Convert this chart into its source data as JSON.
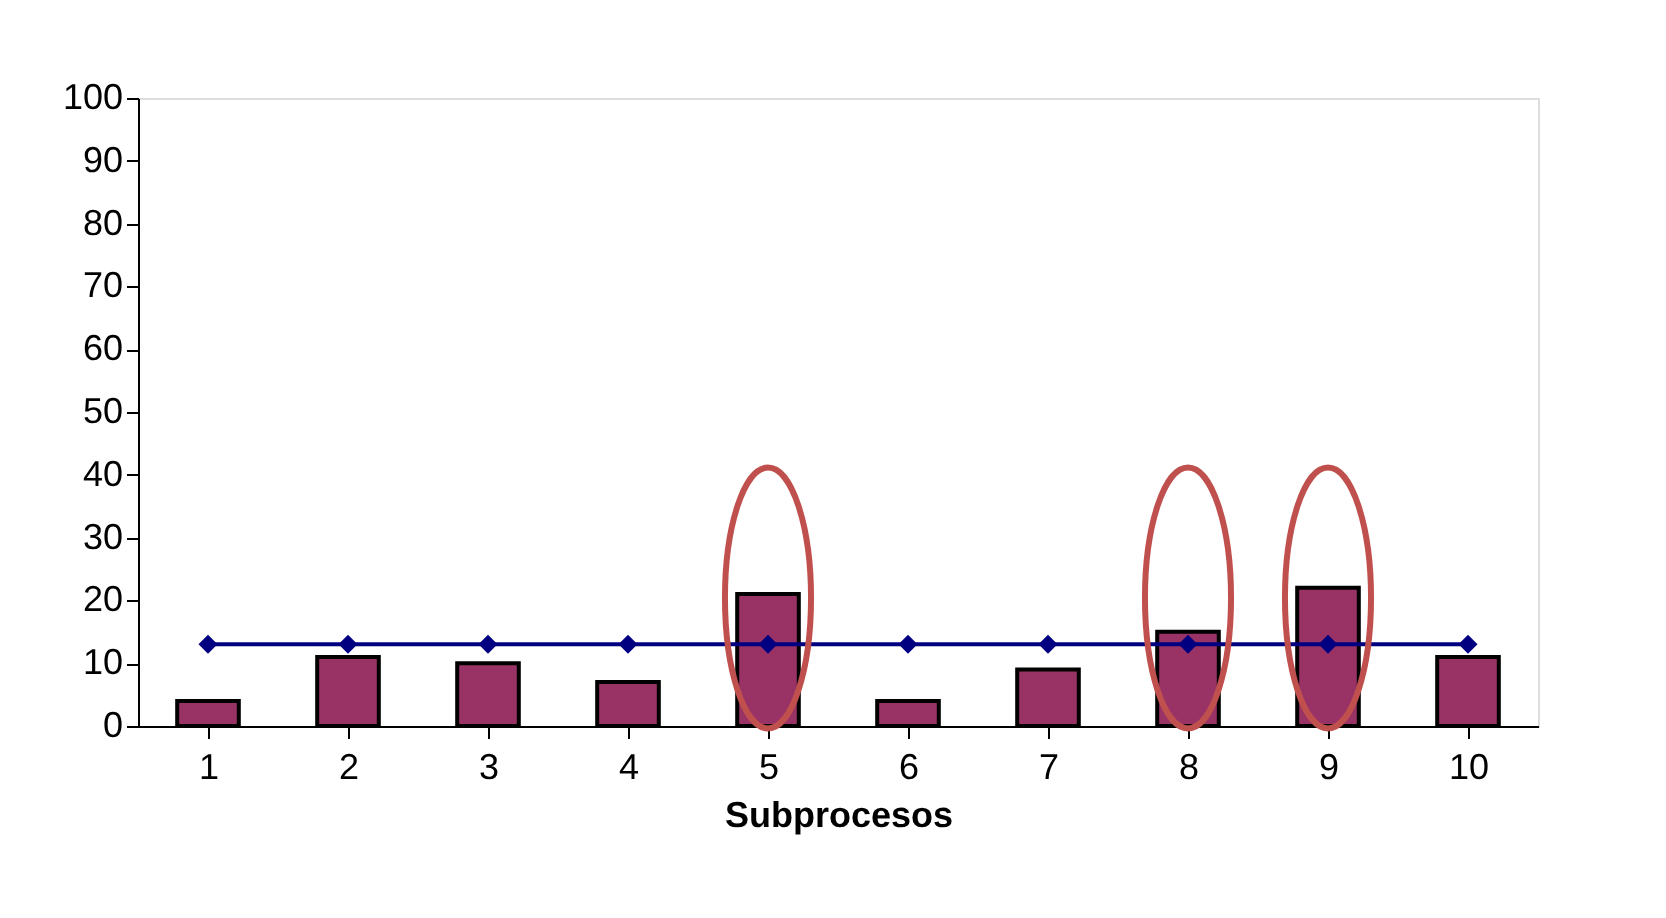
{
  "chart_data": {
    "type": "bar",
    "xlabel": "Subprocesos",
    "categories": [
      "1",
      "2",
      "3",
      "4",
      "5",
      "6",
      "7",
      "8",
      "9",
      "10"
    ],
    "series": [
      {
        "color": "#993366",
        "values": [
          4,
          11,
          10,
          7,
          21,
          4,
          9,
          15,
          22,
          11
        ]
      },
      {
        "type": "line",
        "color": "#000080",
        "marker": "diamond",
        "values": [
          13,
          13,
          13,
          13,
          13,
          13,
          13,
          13,
          13,
          13
        ]
      }
    ],
    "annotations": [
      {
        "x": "5"
      },
      {
        "x": "8"
      },
      {
        "x": "9"
      }
    ],
    "ylim": [
      0,
      100
    ],
    "yticks": [
      0,
      10,
      20,
      30,
      40,
      50,
      60,
      70,
      80,
      90,
      100
    ],
    "grid": false
  }
}
